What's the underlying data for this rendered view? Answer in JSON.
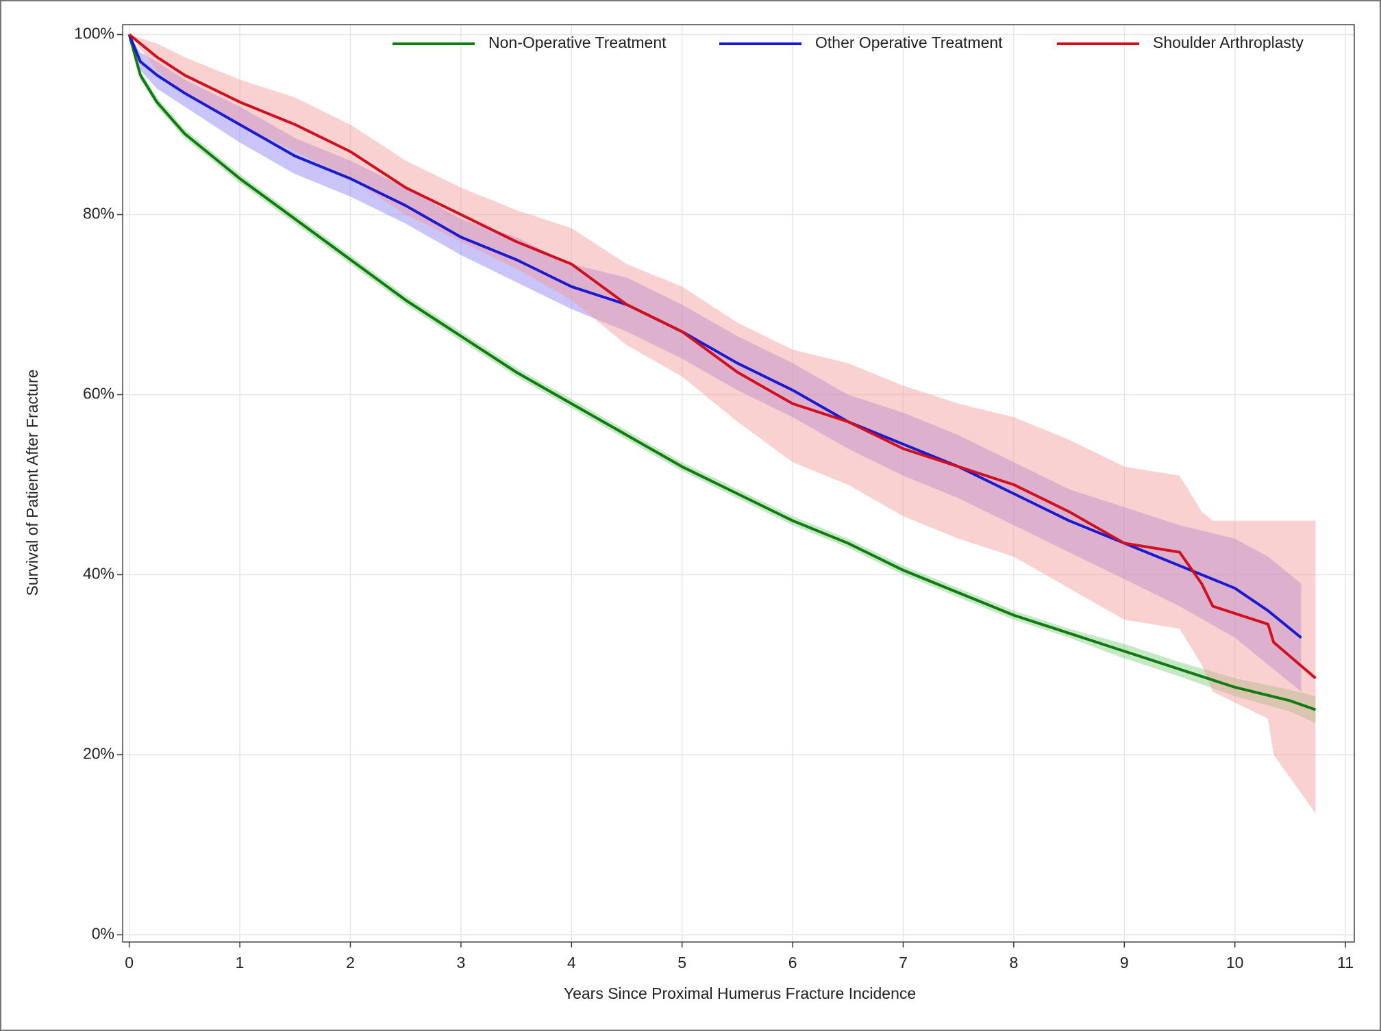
{
  "chart_data": {
    "type": "survival",
    "xlabel": "Years Since Proximal Humerus Fracture Incidence",
    "ylabel": "Survival of Patient After Fracture",
    "xlim": [
      -0.06,
      11.08
    ],
    "xticks": [
      0,
      1,
      2,
      3,
      4,
      5,
      6,
      7,
      8,
      9,
      10,
      11
    ],
    "ylim": [
      -0.8,
      101.1
    ],
    "yticks": [
      {
        "value": 0,
        "label": "0%"
      },
      {
        "value": 20,
        "label": "20%"
      },
      {
        "value": 40,
        "label": "40%"
      },
      {
        "value": 60,
        "label": "60%"
      },
      {
        "value": 80,
        "label": "80%"
      },
      {
        "value": 100,
        "label": "100%"
      }
    ],
    "grid": true,
    "legend": "top-right",
    "series": [
      {
        "name": "Non-Operative Treatment",
        "color": "#117a11",
        "band_color": "#7fcf7f",
        "x": [
          0,
          0.1,
          0.25,
          0.5,
          1,
          1.5,
          2,
          2.5,
          3,
          3.5,
          4,
          4.5,
          5,
          5.5,
          6,
          6.5,
          7,
          7.5,
          8,
          8.5,
          9,
          9.5,
          10,
          10.5,
          10.73
        ],
        "values": [
          100,
          95.5,
          92.5,
          89,
          84,
          79.5,
          75,
          70.5,
          66.5,
          62.5,
          59,
          55.5,
          52,
          49,
          46,
          43.5,
          40.5,
          38,
          35.5,
          33.5,
          31.5,
          29.5,
          27.5,
          26,
          25
        ],
        "lower": [
          100,
          95,
          92,
          88.5,
          83.5,
          79,
          74.5,
          70,
          66,
          62,
          58.5,
          55,
          51.5,
          48.5,
          45.5,
          43,
          40,
          37.5,
          35,
          33,
          30.7,
          28.7,
          26.5,
          24.8,
          23.5
        ],
        "upper": [
          100,
          96,
          93,
          89.5,
          84.5,
          80,
          75.5,
          71,
          67,
          63,
          59.5,
          56,
          52.5,
          49.5,
          46.5,
          44,
          41,
          38.5,
          36,
          34,
          32.3,
          30.3,
          28.5,
          27.2,
          26.5
        ]
      },
      {
        "name": "Other Operative Treatment",
        "color": "#1a1ad0",
        "band_color": "#8a7ff0",
        "x": [
          0,
          0.1,
          0.25,
          0.5,
          1,
          1.5,
          2,
          2.5,
          3,
          3.5,
          4,
          4.5,
          5,
          5.5,
          6,
          6.5,
          7,
          7.5,
          8,
          8.5,
          9,
          9.5,
          10,
          10.3,
          10.6
        ],
        "values": [
          100,
          97,
          95.5,
          93.5,
          90,
          86.5,
          84,
          81,
          77.5,
          75,
          72,
          70,
          67,
          63.5,
          60.5,
          57,
          54.5,
          52,
          49,
          46,
          43.5,
          41,
          38.5,
          36,
          33
        ],
        "lower": [
          100,
          96,
          94,
          92,
          88,
          84.5,
          82,
          79,
          75.5,
          72.5,
          69.5,
          67,
          64,
          60.5,
          57.5,
          54,
          51,
          48.5,
          45.5,
          42.5,
          39.5,
          36.5,
          33,
          30,
          27
        ],
        "upper": [
          100,
          98,
          97,
          95,
          92,
          88.5,
          86,
          83,
          79.5,
          77.5,
          74.5,
          73,
          70,
          66.5,
          63.5,
          60,
          58,
          55.5,
          52.5,
          49.5,
          47.5,
          45.5,
          44,
          42,
          39
        ]
      },
      {
        "name": "Shoulder Arthroplasty",
        "color": "#d0101e",
        "band_color": "#f49a9a",
        "x": [
          0,
          0.25,
          0.5,
          1,
          1.5,
          2,
          2.5,
          3,
          3.5,
          4,
          4.5,
          5,
          5.5,
          6,
          6.5,
          7,
          7.5,
          8,
          8.5,
          9,
          9.5,
          9.7,
          9.8,
          10.3,
          10.35,
          10.73
        ],
        "values": [
          100,
          97.5,
          95.5,
          92.5,
          90,
          87,
          83,
          80,
          77,
          74.5,
          70,
          67,
          62.5,
          59,
          57,
          54,
          52,
          50,
          47,
          43.5,
          42.5,
          39,
          36.5,
          34.5,
          32.5,
          28.5
        ],
        "lower": [
          100,
          96,
          93.5,
          90,
          87,
          84,
          80,
          77,
          74,
          70.5,
          65.5,
          62,
          57,
          52.5,
          50,
          46.5,
          44,
          42,
          38.5,
          35,
          34,
          30,
          27,
          24,
          20,
          13.5
        ],
        "upper": [
          100,
          99,
          97.5,
          95,
          93,
          90,
          86,
          83,
          80.5,
          78.5,
          74.5,
          72,
          68,
          65,
          63.5,
          61,
          59,
          57.5,
          55,
          52,
          51,
          47,
          46,
          46,
          46,
          46
        ]
      }
    ]
  }
}
